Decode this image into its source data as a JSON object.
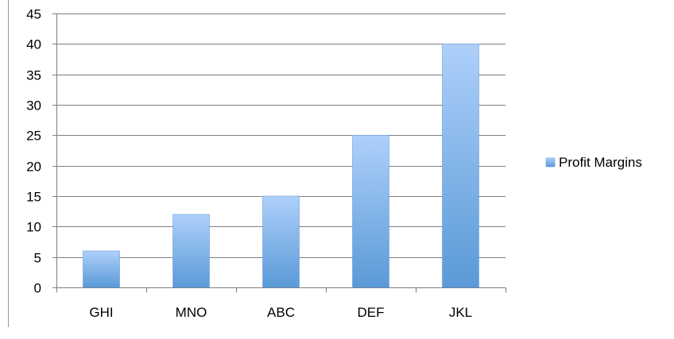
{
  "chart_data": {
    "type": "bar",
    "title": "",
    "xlabel": "",
    "ylabel": "",
    "categories": [
      "GHI",
      "MNO",
      "ABC",
      "DEF",
      "JKL"
    ],
    "series": [
      {
        "name": "Profit Margins",
        "values": [
          6,
          12,
          15,
          25,
          40
        ],
        "color_top": "#aed0fa",
        "color_bottom": "#5a9ad8",
        "border_color": "#5b8fcf"
      }
    ],
    "ylim": [
      0,
      45
    ],
    "yticks": [
      "0",
      "5",
      "10",
      "15",
      "20",
      "25",
      "30",
      "35",
      "40",
      "45"
    ],
    "grid": true,
    "grid_color": "#7f7f7f",
    "legend": {
      "position": "right",
      "entries": [
        "Profit Margins"
      ]
    }
  }
}
